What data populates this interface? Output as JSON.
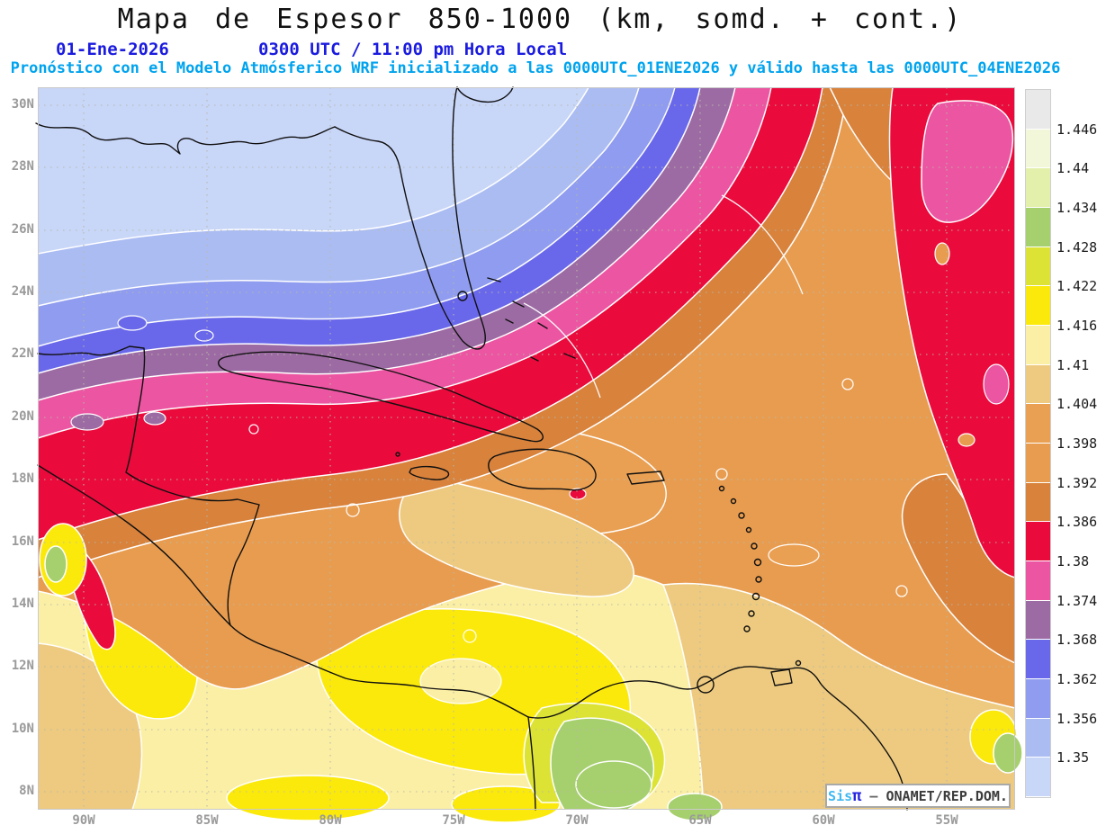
{
  "title": "Mapa de Espesor 850-1000 (km, somd. + cont.)",
  "date_line": {
    "date": "01-Ene-2026",
    "time": "0300 UTC / 11:00 pm Hora Local"
  },
  "forecast_line": "Pronóstico con el Modelo Atmósferico WRF inicializado a las 0000UTC_01ENE2026 y válido hasta las 0000UTC_04ENE2026",
  "watermark": {
    "system": "Sis",
    "pi": "π",
    "separator": " – ",
    "organization": "ONAMET/REP.DOM."
  },
  "axes": {
    "lat": [
      "30N",
      "28N",
      "26N",
      "24N",
      "22N",
      "20N",
      "18N",
      "16N",
      "14N",
      "12N",
      "10N",
      "8N"
    ],
    "lon": [
      "90W",
      "85W",
      "80W",
      "75W",
      "70W",
      "65W",
      "60W",
      "55W"
    ]
  },
  "colorbar": {
    "labels": [
      "1.446",
      "1.44",
      "1.434",
      "1.428",
      "1.422",
      "1.416",
      "1.41",
      "1.404",
      "1.398",
      "1.392",
      "1.386",
      "1.38",
      "1.374",
      "1.368",
      "1.362",
      "1.356",
      "1.35"
    ],
    "colors": [
      "#e9e9e9",
      "#f2f7da",
      "#e2f0ab",
      "#a6cf6e",
      "#dce335",
      "#fbe90c",
      "#fbefa6",
      "#edca7f",
      "#eaa053",
      "#e89c4f",
      "#d8823c",
      "#ea0a3c",
      "#ec55a2",
      "#9c6ba3",
      "#6a68ea",
      "#8f9cef",
      "#abbcf3",
      "#c8d6f8"
    ]
  },
  "chart_data": {
    "type": "heatmap",
    "subtype": "filled-contour-weather-map",
    "variable": "Espesor 850-1000",
    "units": "km",
    "contour_levels": [
      1.35,
      1.356,
      1.362,
      1.368,
      1.374,
      1.38,
      1.386,
      1.392,
      1.398,
      1.404,
      1.41,
      1.416,
      1.422,
      1.428,
      1.434,
      1.44,
      1.446
    ],
    "palette_low_to_high": [
      "#c8d6f8",
      "#abbcf3",
      "#8f9cef",
      "#6a68ea",
      "#9c6ba3",
      "#ec55a2",
      "#ea0a3c",
      "#d8823c",
      "#e89c4f",
      "#eaa053",
      "#edca7f",
      "#fbefa6",
      "#fbe90c",
      "#dce335",
      "#a6cf6e",
      "#e2f0ab",
      "#f2f7da",
      "#e9e9e9"
    ],
    "lat_range_deg_n": [
      7.4,
      30.6
    ],
    "lon_range_deg_w": [
      92,
      52
    ],
    "legend_position": "right",
    "grid": "dotted"
  }
}
